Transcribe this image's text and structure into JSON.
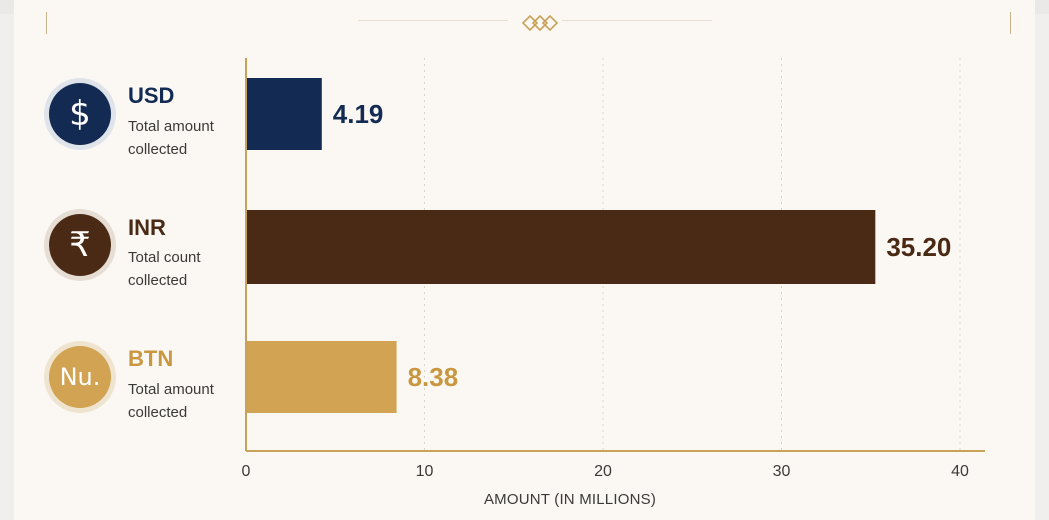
{
  "rows": [
    {
      "code": "USD",
      "symbol": "$",
      "label_line1": "Total amount",
      "label_line2": "collected",
      "value_label": "4.19",
      "color": "#132b52",
      "icon_ring": "#dfe3ea",
      "icon": "dollar-icon"
    },
    {
      "code": "INR",
      "symbol": "₹",
      "label_line1": "Total count",
      "label_line2": "collected",
      "value_label": "35.20",
      "color": "#4a2a14",
      "icon_ring": "#e6ddd4",
      "icon": "rupee-icon"
    },
    {
      "code": "BTN",
      "symbol": "Nu.",
      "label_line1": "Total amount",
      "label_line2": "collected",
      "value_label": "8.38",
      "color": "#d1a352",
      "icon_ring": "#efe4cf",
      "icon": "ngultrum-icon"
    }
  ],
  "chart_data": {
    "type": "bar",
    "orientation": "horizontal",
    "categories": [
      "USD",
      "INR",
      "BTN"
    ],
    "values": [
      4.19,
      35.2,
      8.38
    ],
    "xlabel": "AMOUNT (IN MILLIONS)",
    "ylabel": "",
    "xlim": [
      0,
      40
    ],
    "xticks": [
      "0",
      "10",
      "20",
      "30",
      "40"
    ],
    "grid": "vertical dotted"
  },
  "colors": {
    "axis": "#c9a25a",
    "grid": "#d9d4cc",
    "background": "#fbf8f4"
  }
}
